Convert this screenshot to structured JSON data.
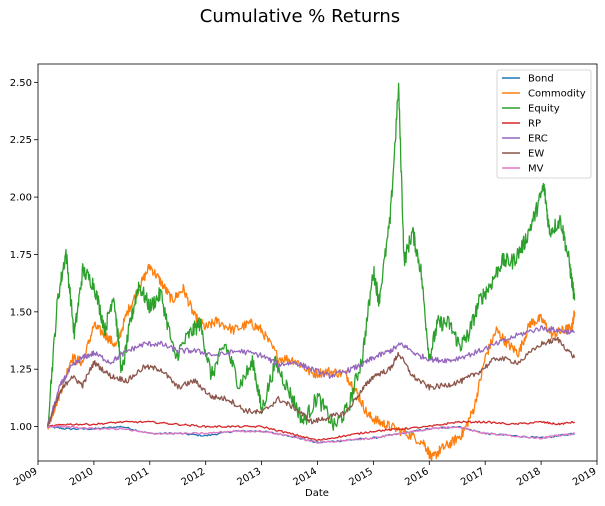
{
  "chart_data": {
    "type": "line",
    "title": "Cumulative % Returns",
    "xlabel": "Date",
    "ylabel": "",
    "xlim": [
      2009.0,
      2019.0
    ],
    "ylim": [
      0.85,
      2.58
    ],
    "x_ticks": [
      "2009",
      "2010",
      "2011",
      "2012",
      "2013",
      "2014",
      "2015",
      "2016",
      "2017",
      "2018",
      "2019"
    ],
    "y_ticks": [
      "1.00",
      "1.25",
      "1.50",
      "1.75",
      "2.00",
      "2.25",
      "2.50"
    ],
    "grid": false,
    "legend_position": "top-right",
    "series": [
      {
        "name": "Bond",
        "color": "#1f77b4",
        "x": [
          2009.17,
          2009.5,
          2010.0,
          2010.5,
          2011.0,
          2011.5,
          2012.0,
          2012.5,
          2013.0,
          2013.5,
          2014.0,
          2014.5,
          2015.0,
          2015.5,
          2016.0,
          2016.5,
          2017.0,
          2017.5,
          2018.0,
          2018.3,
          2018.6
        ],
        "y": [
          1.0,
          0.99,
          0.99,
          1.0,
          0.97,
          0.97,
          0.96,
          0.98,
          0.98,
          0.96,
          0.93,
          0.94,
          0.95,
          0.97,
          0.99,
          1.0,
          0.97,
          0.96,
          0.95,
          0.96,
          0.97
        ]
      },
      {
        "name": "Commodity",
        "color": "#ff7f0e",
        "x": [
          2009.17,
          2009.4,
          2009.6,
          2009.8,
          2010.0,
          2010.2,
          2010.4,
          2010.6,
          2010.8,
          2011.0,
          2011.2,
          2011.4,
          2011.6,
          2011.8,
          2012.0,
          2012.2,
          2012.5,
          2012.8,
          2013.0,
          2013.3,
          2013.6,
          2013.9,
          2014.2,
          2014.5,
          2014.7,
          2014.9,
          2015.1,
          2015.3,
          2015.6,
          2015.9,
          2016.05,
          2016.2,
          2016.4,
          2016.6,
          2016.8,
          2017.0,
          2017.2,
          2017.4,
          2017.6,
          2017.8,
          2018.0,
          2018.2,
          2018.4,
          2018.55,
          2018.6
        ],
        "y": [
          1.0,
          1.15,
          1.3,
          1.28,
          1.44,
          1.4,
          1.35,
          1.5,
          1.6,
          1.7,
          1.63,
          1.55,
          1.6,
          1.48,
          1.43,
          1.46,
          1.42,
          1.45,
          1.42,
          1.3,
          1.29,
          1.23,
          1.24,
          1.23,
          1.15,
          1.05,
          1.02,
          1.0,
          0.97,
          0.93,
          0.86,
          0.9,
          0.93,
          0.97,
          1.08,
          1.3,
          1.42,
          1.36,
          1.32,
          1.45,
          1.47,
          1.4,
          1.42,
          1.43,
          1.5
        ]
      },
      {
        "name": "Equity",
        "color": "#2ca02c",
        "x": [
          2009.17,
          2009.35,
          2009.5,
          2009.65,
          2009.8,
          2010.0,
          2010.2,
          2010.35,
          2010.5,
          2010.65,
          2010.8,
          2011.0,
          2011.2,
          2011.45,
          2011.7,
          2011.9,
          2012.1,
          2012.35,
          2012.6,
          2012.85,
          2013.0,
          2013.25,
          2013.5,
          2013.75,
          2014.0,
          2014.3,
          2014.55,
          2014.8,
          2015.0,
          2015.1,
          2015.3,
          2015.45,
          2015.55,
          2015.7,
          2015.85,
          2016.0,
          2016.15,
          2016.35,
          2016.55,
          2016.7,
          2016.9,
          2017.1,
          2017.3,
          2017.5,
          2017.7,
          2017.9,
          2018.05,
          2018.15,
          2018.35,
          2018.5,
          2018.6
        ],
        "y": [
          1.0,
          1.55,
          1.76,
          1.4,
          1.68,
          1.62,
          1.42,
          1.58,
          1.23,
          1.45,
          1.62,
          1.52,
          1.58,
          1.3,
          1.4,
          1.45,
          1.22,
          1.36,
          1.18,
          1.28,
          1.07,
          1.28,
          1.15,
          1.02,
          1.13,
          1.0,
          1.08,
          1.3,
          1.68,
          1.55,
          1.9,
          2.48,
          1.72,
          1.85,
          1.68,
          1.3,
          1.45,
          1.45,
          1.35,
          1.4,
          1.55,
          1.62,
          1.72,
          1.72,
          1.8,
          1.93,
          2.05,
          1.85,
          1.9,
          1.72,
          1.55
        ]
      },
      {
        "name": "RP",
        "color": "#d62728",
        "x": [
          2009.17,
          2009.5,
          2010.0,
          2010.5,
          2011.0,
          2011.5,
          2012.0,
          2012.5,
          2013.0,
          2013.5,
          2014.0,
          2014.5,
          2015.0,
          2015.5,
          2016.0,
          2016.5,
          2017.0,
          2017.5,
          2018.0,
          2018.3,
          2018.6
        ],
        "y": [
          1.0,
          1.01,
          1.01,
          1.02,
          1.02,
          1.01,
          1.0,
          1.0,
          1.0,
          0.97,
          0.94,
          0.96,
          0.98,
          0.99,
          1.0,
          1.02,
          1.02,
          1.01,
          1.02,
          1.01,
          1.02
        ]
      },
      {
        "name": "ERC",
        "color": "#9467bd",
        "x": [
          2009.17,
          2009.4,
          2009.6,
          2009.8,
          2010.0,
          2010.3,
          2010.6,
          2010.9,
          2011.2,
          2011.5,
          2011.8,
          2012.2,
          2012.6,
          2013.0,
          2013.3,
          2013.6,
          2013.9,
          2014.2,
          2014.5,
          2014.8,
          2015.0,
          2015.3,
          2015.5,
          2015.8,
          2016.1,
          2016.4,
          2016.8,
          2017.2,
          2017.6,
          2018.0,
          2018.3,
          2018.6
        ],
        "y": [
          1.0,
          1.18,
          1.26,
          1.3,
          1.32,
          1.28,
          1.33,
          1.36,
          1.36,
          1.33,
          1.33,
          1.31,
          1.33,
          1.31,
          1.27,
          1.28,
          1.25,
          1.22,
          1.24,
          1.27,
          1.3,
          1.33,
          1.36,
          1.31,
          1.29,
          1.29,
          1.32,
          1.36,
          1.4,
          1.43,
          1.42,
          1.41
        ]
      },
      {
        "name": "EW",
        "color": "#8c564b",
        "x": [
          2009.17,
          2009.4,
          2009.6,
          2009.8,
          2010.0,
          2010.3,
          2010.6,
          2010.9,
          2011.2,
          2011.5,
          2011.8,
          2012.1,
          2012.4,
          2012.7,
          2013.0,
          2013.3,
          2013.6,
          2013.9,
          2014.2,
          2014.5,
          2014.8,
          2015.0,
          2015.3,
          2015.45,
          2015.7,
          2016.0,
          2016.3,
          2016.6,
          2016.9,
          2017.2,
          2017.6,
          2018.0,
          2018.3,
          2018.6
        ],
        "y": [
          1.0,
          1.15,
          1.22,
          1.18,
          1.28,
          1.22,
          1.2,
          1.26,
          1.25,
          1.17,
          1.2,
          1.13,
          1.12,
          1.07,
          1.06,
          1.12,
          1.08,
          1.02,
          1.04,
          1.06,
          1.16,
          1.22,
          1.25,
          1.32,
          1.22,
          1.17,
          1.18,
          1.2,
          1.24,
          1.3,
          1.28,
          1.36,
          1.38,
          1.3
        ]
      },
      {
        "name": "MV",
        "color": "#e377c2",
        "x": [
          2009.17,
          2009.5,
          2010.0,
          2010.5,
          2011.0,
          2011.5,
          2012.0,
          2012.5,
          2013.0,
          2013.5,
          2014.0,
          2014.5,
          2015.0,
          2015.5,
          2016.0,
          2016.5,
          2017.0,
          2017.5,
          2018.0,
          2018.3,
          2018.6
        ],
        "y": [
          1.0,
          1.0,
          0.99,
          0.99,
          0.97,
          0.97,
          0.97,
          0.98,
          0.98,
          0.96,
          0.93,
          0.94,
          0.95,
          0.97,
          0.99,
          1.0,
          0.97,
          0.96,
          0.95,
          0.96,
          0.97
        ]
      }
    ]
  }
}
